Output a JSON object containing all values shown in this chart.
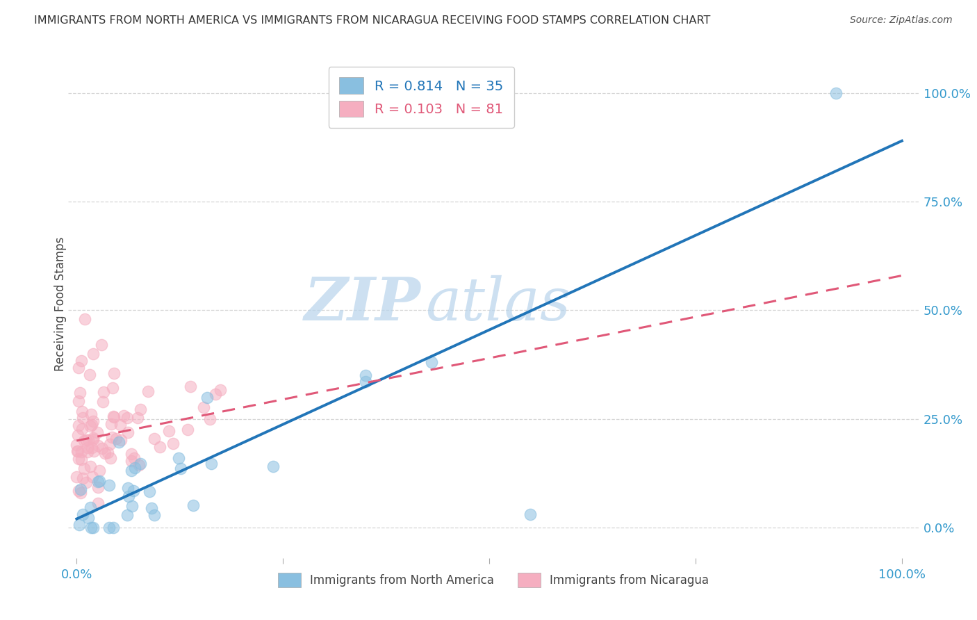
{
  "title": "IMMIGRANTS FROM NORTH AMERICA VS IMMIGRANTS FROM NICARAGUA RECEIVING FOOD STAMPS CORRELATION CHART",
  "source": "Source: ZipAtlas.com",
  "ylabel": "Receiving Food Stamps",
  "blue_color": "#89bfe0",
  "pink_color": "#f5aec0",
  "blue_line_color": "#2175b8",
  "pink_line_color": "#e05878",
  "blue_R": 0.814,
  "blue_N": 35,
  "pink_R": 0.103,
  "pink_N": 81,
  "watermark_zip": "ZIP",
  "watermark_atlas": "atlas",
  "background_color": "#ffffff",
  "grid_color": "#cccccc",
  "legend_label_blue": "Immigrants from North America",
  "legend_label_pink": "Immigrants from Nicaragua",
  "blue_slope": 0.87,
  "blue_intercept": 0.02,
  "pink_slope": 0.38,
  "pink_intercept": 0.2,
  "axis_text_color": "#3399cc",
  "title_color": "#333333",
  "source_color": "#555555"
}
